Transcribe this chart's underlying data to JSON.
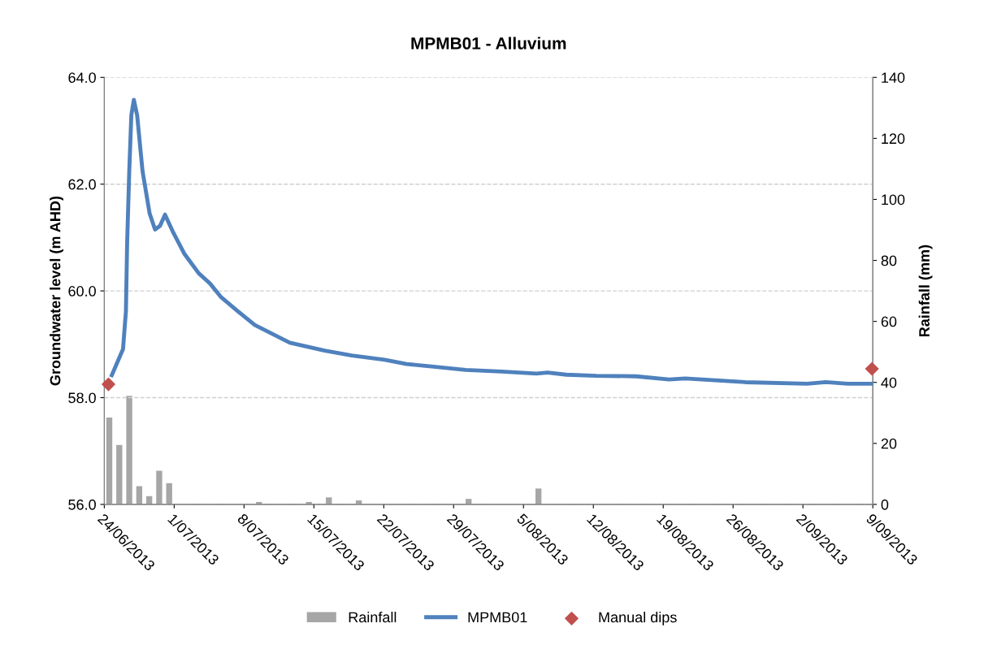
{
  "chart_data": {
    "type": "line",
    "title": "MPMB01 - Alluvium",
    "ylabel": "Groundwater level (m AHD)",
    "y2label": "Rainfall (mm)",
    "xlim": [
      "2013-06-24",
      "2013-09-09"
    ],
    "xticks": [
      {
        "value": "2013-06-24",
        "label": "24/06/2013"
      },
      {
        "value": "2013-07-01",
        "label": "1/07/2013"
      },
      {
        "value": "2013-07-08",
        "label": "8/07/2013"
      },
      {
        "value": "2013-07-15",
        "label": "15/07/2013"
      },
      {
        "value": "2013-07-22",
        "label": "22/07/2013"
      },
      {
        "value": "2013-07-29",
        "label": "29/07/2013"
      },
      {
        "value": "2013-08-05",
        "label": "5/08/2013"
      },
      {
        "value": "2013-08-12",
        "label": "12/08/2013"
      },
      {
        "value": "2013-08-19",
        "label": "19/08/2013"
      },
      {
        "value": "2013-08-26",
        "label": "26/08/2013"
      },
      {
        "value": "2013-09-02",
        "label": "2/09/2013"
      },
      {
        "value": "2013-09-09",
        "label": "9/09/2013"
      }
    ],
    "ylim": [
      56,
      64
    ],
    "yticks": [
      {
        "value": 56,
        "label": "56.0"
      },
      {
        "value": 58,
        "label": "58.0"
      },
      {
        "value": 60,
        "label": "60.0"
      },
      {
        "value": 62,
        "label": "62.0"
      },
      {
        "value": 64,
        "label": "64.0"
      }
    ],
    "y2lim": [
      0,
      140
    ],
    "y2ticks": [
      0,
      20,
      40,
      60,
      80,
      100,
      120,
      140
    ],
    "grid": "y",
    "legend": "bottom",
    "series": [
      {
        "name": "Rainfall",
        "type": "bar",
        "axis": "y2",
        "color": "#a6a6a6",
        "x": [
          "2013-06-24T12:00",
          "2013-06-25T12:00",
          "2013-06-26T12:00",
          "2013-06-27T12:00",
          "2013-06-28T12:00",
          "2013-06-29T12:00",
          "2013-06-30T12:00",
          "2013-07-09T12:00",
          "2013-07-14T12:00",
          "2013-07-16T12:00",
          "2013-07-19T12:00",
          "2013-07-30T12:00",
          "2013-08-06T12:00"
        ],
        "values": [
          28.5,
          19.5,
          35.6,
          6,
          2.7,
          11,
          7,
          0.8,
          0.8,
          2.3,
          1.3,
          1.8,
          5.2
        ]
      },
      {
        "name": "MPMB01",
        "color": "#4f81bd",
        "marker": "none",
        "line_style": "solid",
        "x": [
          "2013-06-24T18:00",
          "2013-06-25T21:00",
          "2013-06-26T04:00",
          "2013-06-26T07:00",
          "2013-06-26T12:00",
          "2013-06-26T17:00",
          "2013-06-26T23:00",
          "2013-06-27T07:00",
          "2013-06-27T20:00",
          "2013-06-28T13:00",
          "2013-06-29T02:00",
          "2013-06-29T14:00",
          "2013-06-30T02:00",
          "2013-06-30T22:00",
          "2013-07-02T01:00",
          "2013-07-03T11:00",
          "2013-07-04T14:00",
          "2013-07-05T17:00",
          "2013-07-07T09:00",
          "2013-07-09T02:00",
          "2013-07-12T14:00",
          "2013-07-16T02:00",
          "2013-07-18T19:00",
          "2013-07-22T02:00",
          "2013-07-24T07:00",
          "2013-07-27T00:00",
          "2013-07-30T05:00",
          "2013-08-02T19:00",
          "2013-08-06T07:00",
          "2013-08-07T10:00",
          "2013-08-09T07:00",
          "2013-08-12T07:00",
          "2013-08-16T07:00",
          "2013-08-19T14:00",
          "2013-08-21T05:00",
          "2013-08-27T05:00",
          "2013-09-02T10:00",
          "2013-09-04T07:00",
          "2013-09-06T12:00",
          "2013-09-08T22:00"
        ],
        "values": [
          58.42,
          58.91,
          59.62,
          60.93,
          62.24,
          63.29,
          63.58,
          63.29,
          62.24,
          61.45,
          61.15,
          61.22,
          61.43,
          61.09,
          60.69,
          60.33,
          60.14,
          59.88,
          59.62,
          59.36,
          59.03,
          58.88,
          58.79,
          58.71,
          58.63,
          58.58,
          58.52,
          58.49,
          58.45,
          58.47,
          58.43,
          58.41,
          58.4,
          58.34,
          58.36,
          58.29,
          58.26,
          58.29,
          58.26,
          58.26
        ]
      },
      {
        "name": "Manual dips",
        "type": "scatter",
        "color": "#c0504d",
        "marker": "diamond",
        "x": [
          "2013-06-24T10:00",
          "2013-09-08T22:00"
        ],
        "values": [
          58.25,
          58.54
        ]
      }
    ]
  }
}
